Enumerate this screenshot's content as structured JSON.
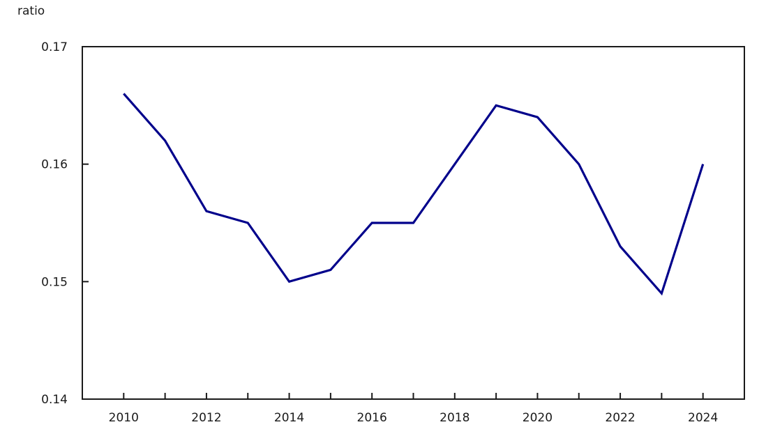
{
  "page": {
    "background_color": "#ffffff",
    "text_color": "#1a1a1a"
  },
  "chart_data": {
    "type": "line",
    "title": "",
    "ylabel": "ratio",
    "xlabel": "",
    "x": [
      2010,
      2011,
      2012,
      2013,
      2014,
      2015,
      2016,
      2017,
      2018,
      2019,
      2020,
      2021,
      2022,
      2023,
      2024
    ],
    "series": [
      {
        "name": "ratio",
        "values": [
          0.166,
          0.162,
          0.156,
          0.155,
          0.15,
          0.151,
          0.155,
          0.155,
          0.16,
          0.165,
          0.164,
          0.16,
          0.153,
          0.149,
          0.16
        ]
      }
    ],
    "xlim": [
      2009,
      2025
    ],
    "ylim": [
      0.14,
      0.17
    ],
    "y_ticks": [
      0.17,
      0.16,
      0.15,
      0.14
    ],
    "y_tick_labels": [
      "0.17",
      "0.16",
      "0.15",
      "0.14"
    ],
    "x_tick_years": [
      2010,
      2011,
      2012,
      2013,
      2014,
      2015,
      2016,
      2017,
      2018,
      2019,
      2020,
      2021,
      2022,
      2023,
      2024
    ],
    "x_label_ticks": [
      2010,
      2012,
      2014,
      2016,
      2018,
      2020,
      2022,
      2024
    ],
    "x_label_texts": [
      "2010",
      "2012",
      "2014",
      "2016",
      "2018",
      "2020",
      "2022",
      "2024"
    ],
    "line_color": "#00008b",
    "axis_color": "#1a1a1a",
    "grid": false,
    "legend_position": "none",
    "markers": false
  }
}
